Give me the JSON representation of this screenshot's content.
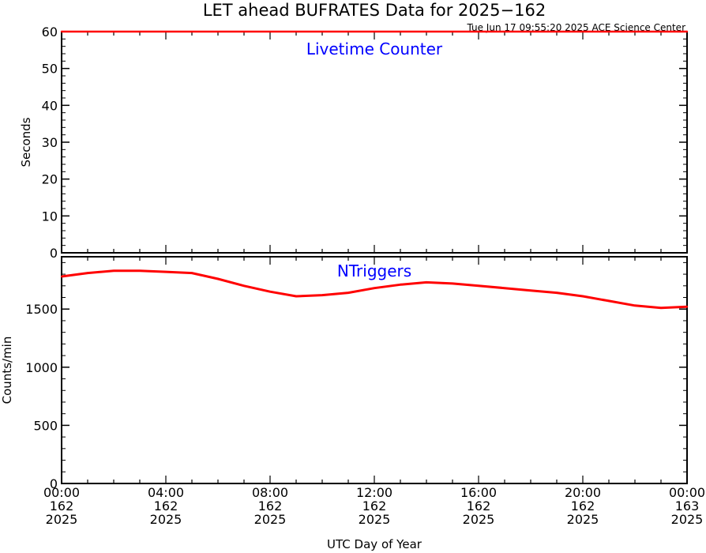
{
  "title": "LET ahead BUFRATES Data for 2025−162",
  "timestamp": "Tue Jun 17 09:55:20 2025 ACE Science Center",
  "xlabel": "UTC Day of Year",
  "colors": {
    "series": "#ff0000",
    "panel_label": "#0000ff",
    "axes": "#000000"
  },
  "x_ticks": [
    {
      "hour": 0,
      "time": "00:00",
      "doy": "162",
      "year": "2025"
    },
    {
      "hour": 4,
      "time": "04:00",
      "doy": "162",
      "year": "2025"
    },
    {
      "hour": 8,
      "time": "08:00",
      "doy": "162",
      "year": "2025"
    },
    {
      "hour": 12,
      "time": "12:00",
      "doy": "162",
      "year": "2025"
    },
    {
      "hour": 16,
      "time": "16:00",
      "doy": "162",
      "year": "2025"
    },
    {
      "hour": 20,
      "time": "20:00",
      "doy": "162",
      "year": "2025"
    },
    {
      "hour": 24,
      "time": "00:00",
      "doy": "163",
      "year": "2025"
    }
  ],
  "chart_data": [
    {
      "type": "line",
      "panel_label": "Livetime Counter",
      "ylabel": "Seconds",
      "xlim": [
        0,
        24
      ],
      "ylim": [
        0,
        60
      ],
      "yticks": [
        0,
        10,
        20,
        30,
        40,
        50,
        60
      ],
      "x": [
        0,
        24
      ],
      "values": [
        60,
        60
      ]
    },
    {
      "type": "line",
      "panel_label": "NTriggers",
      "ylabel": "Counts/min",
      "xlim": [
        0,
        24
      ],
      "ylim": [
        0,
        1950
      ],
      "yticks": [
        0,
        500,
        1000,
        1500
      ],
      "x": [
        0,
        1,
        2,
        3,
        4,
        5,
        6,
        7,
        8,
        9,
        10,
        11,
        12,
        13,
        14,
        15,
        16,
        17,
        18,
        19,
        20,
        21,
        22,
        23,
        24
      ],
      "values": [
        1780,
        1810,
        1830,
        1830,
        1820,
        1810,
        1760,
        1700,
        1650,
        1610,
        1620,
        1640,
        1680,
        1710,
        1730,
        1720,
        1700,
        1680,
        1660,
        1640,
        1610,
        1570,
        1530,
        1510,
        1520
      ]
    }
  ]
}
